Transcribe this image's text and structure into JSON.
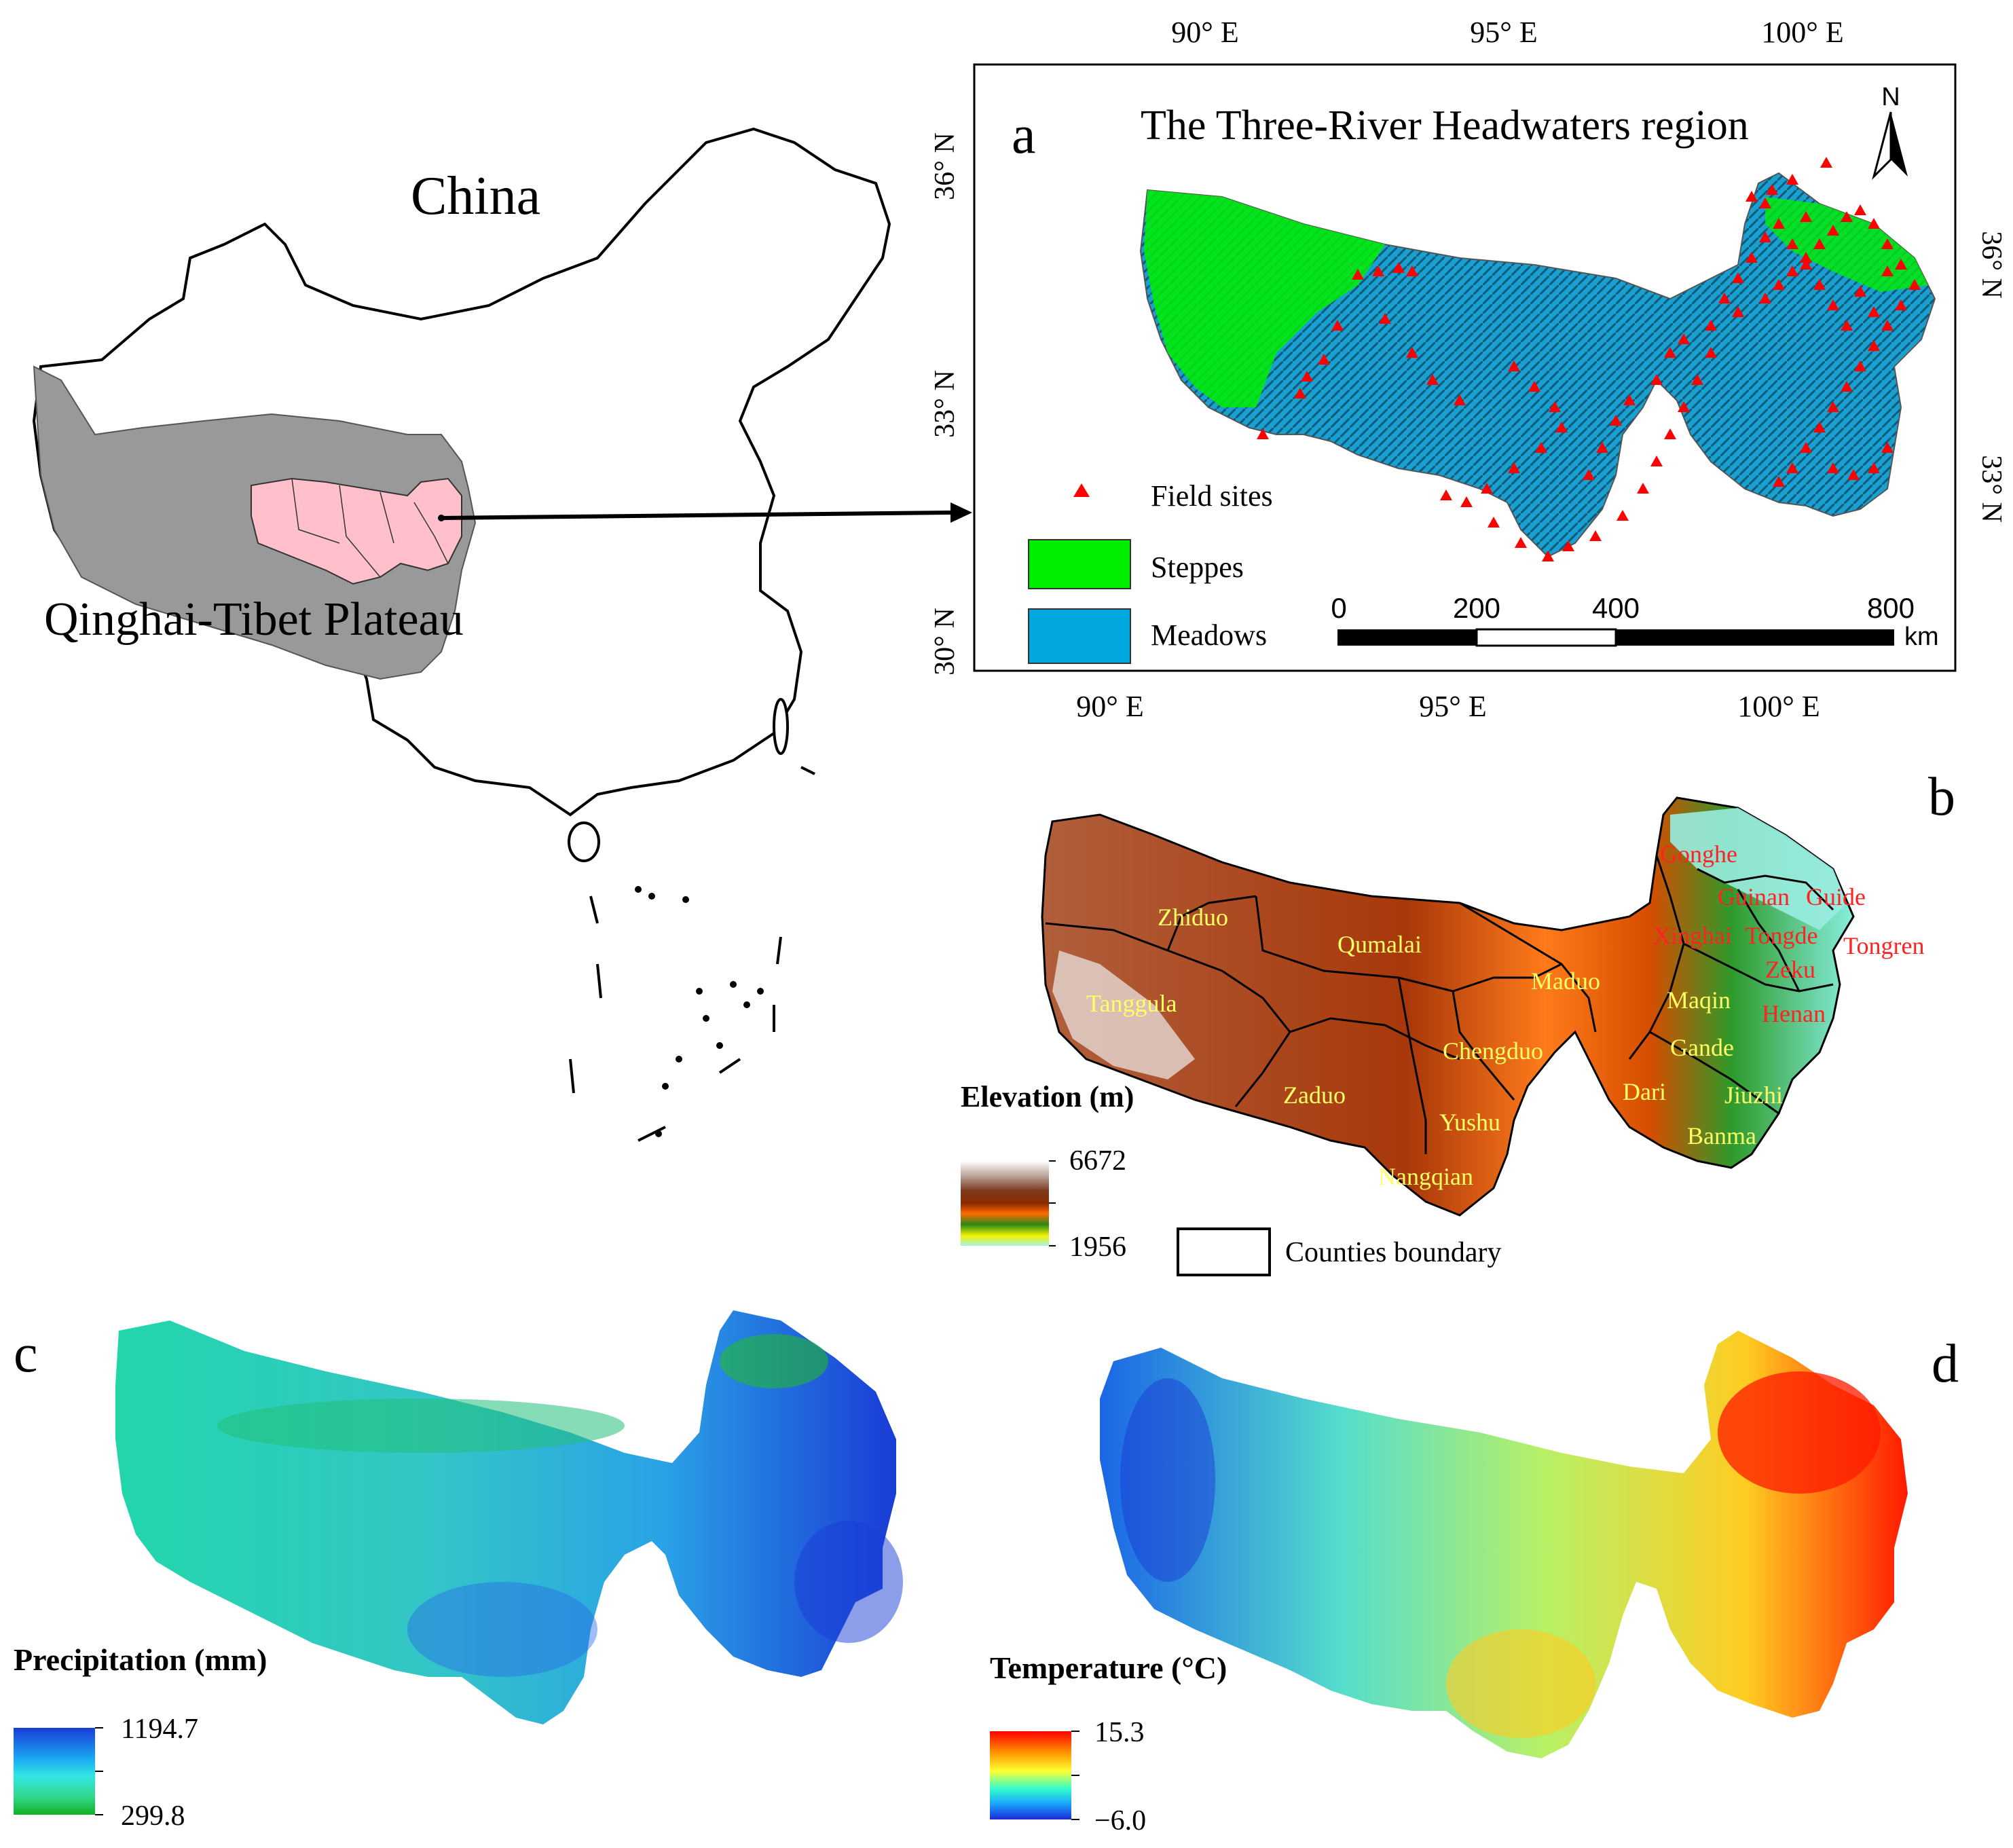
{
  "china_map": {
    "title": "China",
    "plateau_label": "Qinghai-Tibet Plateau"
  },
  "panel_a": {
    "letter": "a",
    "title": "The Three-River Headwaters region",
    "north": "N",
    "top_ticks": [
      "90° E",
      "95° E",
      "100° E"
    ],
    "bottom_ticks": [
      "90° E",
      "95° E",
      "100° E"
    ],
    "left_ticks": [
      "36° N",
      "33° N",
      "30° N"
    ],
    "right_ticks": [
      "36° N",
      "33° N"
    ],
    "legend": {
      "field_sites": "Field sites",
      "steppes": "Steppes",
      "meadows": "Meadows"
    },
    "scalebar": {
      "labels": [
        "0",
        "200",
        "400",
        "800"
      ],
      "unit": "km"
    }
  },
  "panel_b": {
    "letter": "b",
    "legend_title": "Elevation (m)",
    "max": "6672",
    "min": "1956",
    "boundary_label": "Counties boundary",
    "counties_yellow": [
      "Zhiduo",
      "Qumalai",
      "Tanggula",
      "Maduo",
      "Maqin",
      "Chengduo",
      "Zaduo",
      "Yushu",
      "Nangqian",
      "Gande",
      "Dari",
      "Jiuzhi",
      "Banma"
    ],
    "counties_red": [
      "Gonghe",
      "Guinan",
      "Guide",
      "Xinghai",
      "Tongde",
      "Tongren",
      "Zeku",
      "Henan"
    ]
  },
  "panel_c": {
    "letter": "c",
    "legend_title": "Precipitation (mm)",
    "max": "1194.7",
    "min": "299.8"
  },
  "panel_d": {
    "letter": "d",
    "legend_title": "Temperature (°C)",
    "max": "15.3",
    "min": "−6.0"
  },
  "colors": {
    "plateau": "#999999",
    "study_region": "#ffc0cb",
    "steppes": "#00ee00",
    "meadows": "#00a8e0",
    "field_sites": "#ff0000",
    "county_red": "#ff2222",
    "county_yellow": "#ffff66"
  }
}
